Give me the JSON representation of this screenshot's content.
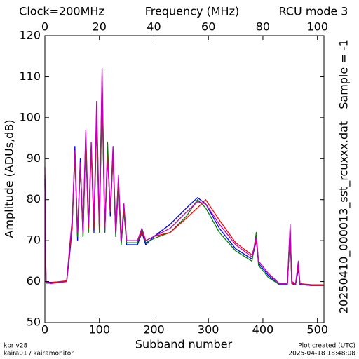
{
  "chart_data": {
    "type": "line",
    "header_left": "Clock=200MHz",
    "header_center": "Frequency (MHz)",
    "header_right": "RCU mode 3",
    "side_file": "20250410_000013_sst_rcuxxx.dat",
    "side_sample": "Sample = -1",
    "x_label": "Subband number",
    "y_label": "Amplitude (ADUs,dB)",
    "footer_left": [
      "kpr v28",
      "kaira01 / kairamonitor"
    ],
    "footer_right": [
      "Plot created (UTC)",
      "2025-04-18 18:48:08"
    ],
    "xlim": [
      0,
      512
    ],
    "xticks": [
      0,
      100,
      200,
      300,
      400,
      500
    ],
    "x2lim": [
      0,
      102.4
    ],
    "x2ticks": [
      0,
      20,
      40,
      60,
      80,
      100
    ],
    "ylim": [
      50,
      120
    ],
    "yticks": [
      50,
      60,
      70,
      80,
      90,
      100,
      110,
      120
    ],
    "x": [
      0,
      2,
      10,
      40,
      45,
      50,
      55,
      60,
      65,
      70,
      75,
      80,
      85,
      90,
      95,
      100,
      105,
      110,
      115,
      120,
      125,
      130,
      135,
      140,
      145,
      150,
      170,
      178,
      185,
      200,
      230,
      260,
      280,
      295,
      320,
      350,
      380,
      388,
      392,
      410,
      430,
      445,
      450,
      453,
      460,
      465,
      468,
      490,
      511
    ],
    "series": [
      {
        "color": "#0000ff",
        "values": [
          85,
          59.8,
          59.8,
          60,
          66,
          73,
          93,
          70,
          90,
          71,
          96,
          73,
          93,
          72,
          100,
          73,
          108,
          72,
          92,
          76,
          91,
          71,
          85,
          69,
          78,
          69,
          69,
          72,
          69,
          71,
          74,
          78,
          80.5,
          79,
          73,
          68,
          65.5,
          70,
          64.5,
          61.5,
          59.2,
          59.2,
          72,
          59.5,
          59.2,
          63,
          59.3,
          59,
          59
        ]
      },
      {
        "color": "#008000",
        "values": [
          86,
          59.6,
          59.6,
          60,
          67,
          74,
          90,
          71,
          88,
          71,
          95,
          72,
          93,
          73,
          98,
          72,
          106,
          72,
          94,
          77,
          90,
          71,
          84,
          69,
          77,
          69.5,
          69.5,
          72.5,
          69.5,
          70.5,
          72,
          76,
          80,
          78,
          72,
          67.5,
          65,
          72,
          64,
          61,
          59.3,
          59.3,
          73,
          59.8,
          59.3,
          64,
          59.4,
          59,
          59
        ]
      },
      {
        "color": "#ff0000",
        "values": [
          84,
          59.7,
          59.7,
          60.2,
          67,
          74,
          91,
          72,
          89,
          72,
          95,
          73,
          92,
          73,
          102,
          73,
          110,
          73,
          91,
          77,
          92,
          72,
          85,
          70,
          78,
          70,
          70,
          72,
          70,
          71,
          72,
          75.5,
          78,
          80,
          75,
          69.5,
          66.5,
          70,
          65,
          62,
          59.5,
          59.5,
          73,
          59.6,
          59.5,
          64,
          59.5,
          59.2,
          59.2
        ]
      },
      {
        "color": "#bf00bf",
        "values": [
          88,
          60,
          59.5,
          60,
          68,
          75,
          92,
          72,
          89,
          72,
          97,
          74,
          94,
          75,
          104,
          74,
          112,
          73,
          90,
          78,
          93,
          72,
          86,
          70,
          79,
          70,
          70,
          73,
          70,
          71,
          73,
          77,
          79.5,
          79,
          74,
          69,
          66,
          71,
          65,
          62,
          59.5,
          59.5,
          74,
          60,
          59.5,
          65,
          59.5,
          59,
          59
        ]
      }
    ]
  }
}
